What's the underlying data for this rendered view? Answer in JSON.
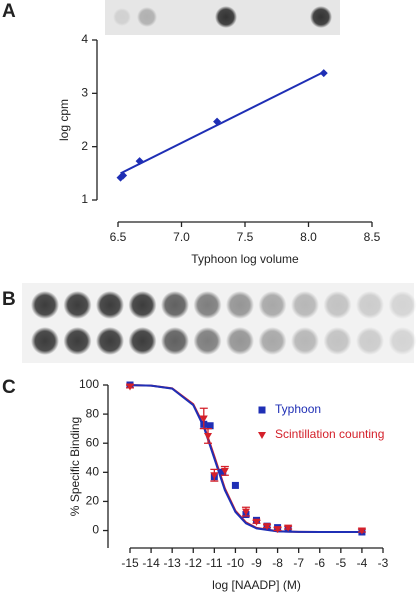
{
  "panel_labels": [
    "A",
    "B",
    "C"
  ],
  "chart_data": [
    {
      "type": "scatter",
      "x_label": "Typhoon log volume",
      "y_label": "log cpm",
      "xlim": [
        6.5,
        8.5
      ],
      "xticks": [
        6.5,
        {
          "value": 7,
          "label": "7.0"
        },
        7.5,
        {
          "value": 8,
          "label": "8.0"
        },
        8.5
      ],
      "ylim": [
        1,
        4
      ],
      "yticks": [
        1,
        2,
        3,
        4
      ],
      "series": [
        {
          "color": "#1f2fb5",
          "marker": "diamond",
          "x": [
            6.52,
            6.54,
            6.67,
            7.28,
            8.12
          ],
          "values": [
            1.42,
            1.46,
            1.73,
            2.47,
            3.38
          ]
        }
      ],
      "curves": [
        {
          "color": "#1f2fb5",
          "x": [
            6.52,
            8.12
          ],
          "values": [
            1.5,
            3.4
          ]
        }
      ]
    },
    {
      "type": "scatter",
      "x_label": "log [NAADP] (M)",
      "y_label": "% Specific Binding",
      "xlim": [
        -15,
        -3
      ],
      "xticks": [
        -15,
        -14,
        -13,
        -12,
        -11,
        -10,
        -9,
        -8,
        -7,
        -6,
        -5,
        -4,
        -3
      ],
      "ylim": [
        -12,
        100
      ],
      "yticks": [
        0,
        20,
        40,
        60,
        80,
        100
      ],
      "series": [
        {
          "name": "Typhoon",
          "color": "#1f2fb5",
          "marker": "square",
          "x": [
            -15,
            -11.5,
            -11.2,
            -11,
            -10.6,
            -10,
            -9.5,
            -9,
            -8.5,
            -8,
            -7.5,
            -4
          ],
          "values": [
            100,
            73,
            72,
            37,
            40,
            31,
            11,
            7,
            3,
            2,
            1,
            -1
          ]
        },
        {
          "name": "Scintillation counting",
          "color": "#d4202a",
          "marker": "triangle",
          "x": [
            -15,
            -11.5,
            -11.3,
            -11,
            -10.5,
            -9.5,
            -9,
            -8.5,
            -8,
            -7.5,
            -4
          ],
          "values": [
            99,
            77,
            65,
            38,
            41,
            13,
            6,
            3,
            1,
            2,
            0
          ],
          "errors": [
            1,
            7,
            5,
            4,
            3,
            3,
            1,
            1,
            1,
            1,
            1
          ]
        }
      ],
      "curves": [
        {
          "color": "#d4202a",
          "x": [
            -15,
            -14,
            -13,
            -12,
            -11.5,
            -11,
            -10.5,
            -10,
            -9.5,
            -9,
            -8,
            -7,
            -6,
            -4
          ],
          "values": [
            99.9,
            99.6,
            97.7,
            86.8,
            72.3,
            51,
            28.9,
            13.6,
            5.6,
            1.8,
            -0.5,
            -0.9,
            -1,
            -1
          ]
        },
        {
          "color": "#1f2fb5",
          "x": [
            -15,
            -14,
            -13,
            -12,
            -11.5,
            -11,
            -10.5,
            -10,
            -9.5,
            -9,
            -8,
            -7,
            -6,
            -4
          ],
          "values": [
            99.9,
            99.6,
            97.5,
            86.2,
            71.2,
            49.5,
            27.8,
            12.8,
            5,
            1.5,
            -0.6,
            -0.94,
            -0.99,
            -1
          ]
        }
      ]
    }
  ]
}
